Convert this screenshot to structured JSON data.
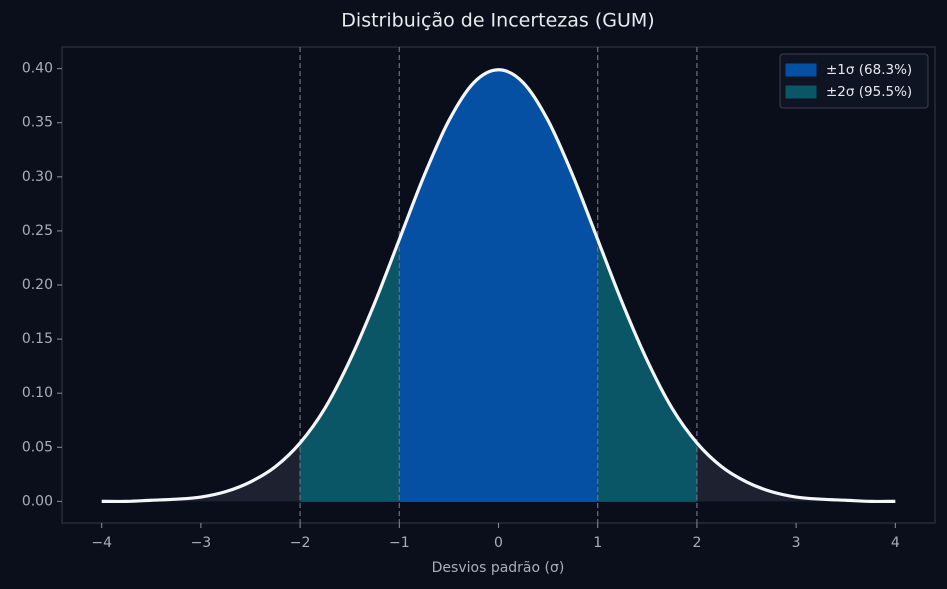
{
  "chart_data": {
    "type": "area",
    "title": "Distribuição de Incertezas (GUM)",
    "xlabel": "Desvios padrão (σ)",
    "x": [
      -4,
      -3.75,
      -3.5,
      -3.25,
      -3,
      -2.75,
      -2.5,
      -2.25,
      -2,
      -1.75,
      -1.5,
      -1.25,
      -1,
      -0.75,
      -0.5,
      -0.25,
      0,
      0.25,
      0.5,
      0.75,
      1,
      1.25,
      1.5,
      1.75,
      2,
      2.25,
      2.5,
      2.75,
      3,
      3.25,
      3.5,
      3.75,
      4
    ],
    "values": [
      0.0,
      0.0,
      0.001,
      0.002,
      0.004,
      0.009,
      0.018,
      0.032,
      0.054,
      0.086,
      0.13,
      0.183,
      0.242,
      0.301,
      0.352,
      0.387,
      0.399,
      0.387,
      0.352,
      0.301,
      0.242,
      0.183,
      0.13,
      0.086,
      0.054,
      0.032,
      0.018,
      0.009,
      0.004,
      0.002,
      0.001,
      0.0,
      0.0
    ],
    "color": "#f4f6fa",
    "fill_color": "#1e2130",
    "regions": [
      {
        "name": "±1σ (68.3%)",
        "range": [
          -1,
          1
        ],
        "color": "#0550a3"
      },
      {
        "name": "±2σ (95.5%)",
        "range": [
          -2,
          2
        ],
        "color": "#0a5566"
      }
    ],
    "vlines": [
      -2,
      -1,
      1,
      2
    ],
    "xlim": [
      -4.4,
      4.4
    ],
    "ylim": [
      -0.02,
      0.42
    ],
    "xticks": [
      {
        "value": -4,
        "label": "−4"
      },
      {
        "value": -3,
        "label": "−3"
      },
      {
        "value": -2,
        "label": "−2"
      },
      {
        "value": -1,
        "label": "−1"
      },
      0,
      1,
      2,
      3,
      4
    ],
    "yticks": [
      {
        "value": 0,
        "label": "0.00"
      },
      {
        "value": 0.05,
        "label": "0.05"
      },
      {
        "value": 0.1,
        "label": "0.10"
      },
      {
        "value": 0.15,
        "label": "0.15"
      },
      {
        "value": 0.2,
        "label": "0.20"
      },
      {
        "value": 0.25,
        "label": "0.25"
      },
      {
        "value": 0.3,
        "label": "0.30"
      },
      {
        "value": 0.35,
        "label": "0.35"
      },
      {
        "value": 0.4,
        "label": "0.40"
      }
    ],
    "legend": "upper right"
  }
}
